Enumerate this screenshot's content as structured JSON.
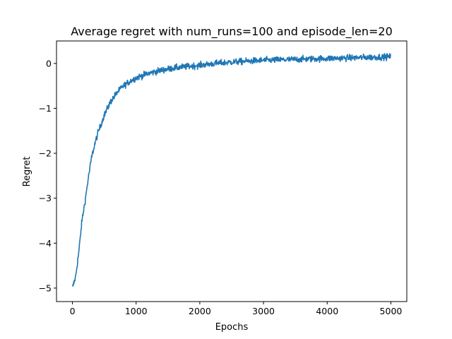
{
  "chart_data": {
    "type": "line",
    "title": "Average regret with num_runs=100 and episode_len=20",
    "xlabel": "Epochs",
    "ylabel": "Regret",
    "xlim": [
      -250,
      5250
    ],
    "ylim": [
      -5.3,
      0.5
    ],
    "xticks": [
      0,
      1000,
      2000,
      3000,
      4000,
      5000
    ],
    "xtick_labels": [
      "0",
      "1000",
      "2000",
      "3000",
      "4000",
      "5000"
    ],
    "yticks": [
      -5,
      -4,
      -3,
      -2,
      -1,
      0
    ],
    "ytick_labels": [
      "−5",
      "−4",
      "−3",
      "−2",
      "−1",
      "0"
    ],
    "grid": false,
    "series": [
      {
        "color": "#1f77b4",
        "x": [
          0,
          50,
          100,
          150,
          200,
          250,
          300,
          350,
          400,
          450,
          500,
          600,
          700,
          800,
          900,
          1000,
          1200,
          1400,
          1600,
          1800,
          2000,
          2250,
          2500,
          2750,
          3000,
          3250,
          3500,
          3750,
          4000,
          4250,
          4500,
          4750,
          5000
        ],
        "y": [
          -5.0,
          -4.75,
          -4.2,
          -3.5,
          -3.05,
          -2.55,
          -2.1,
          -1.8,
          -1.55,
          -1.35,
          -1.15,
          -0.85,
          -0.65,
          -0.5,
          -0.4,
          -0.32,
          -0.22,
          -0.15,
          -0.1,
          -0.07,
          -0.04,
          0.0,
          0.03,
          0.05,
          0.07,
          0.08,
          0.09,
          0.1,
          0.11,
          0.12,
          0.13,
          0.14,
          0.15
        ]
      }
    ]
  }
}
